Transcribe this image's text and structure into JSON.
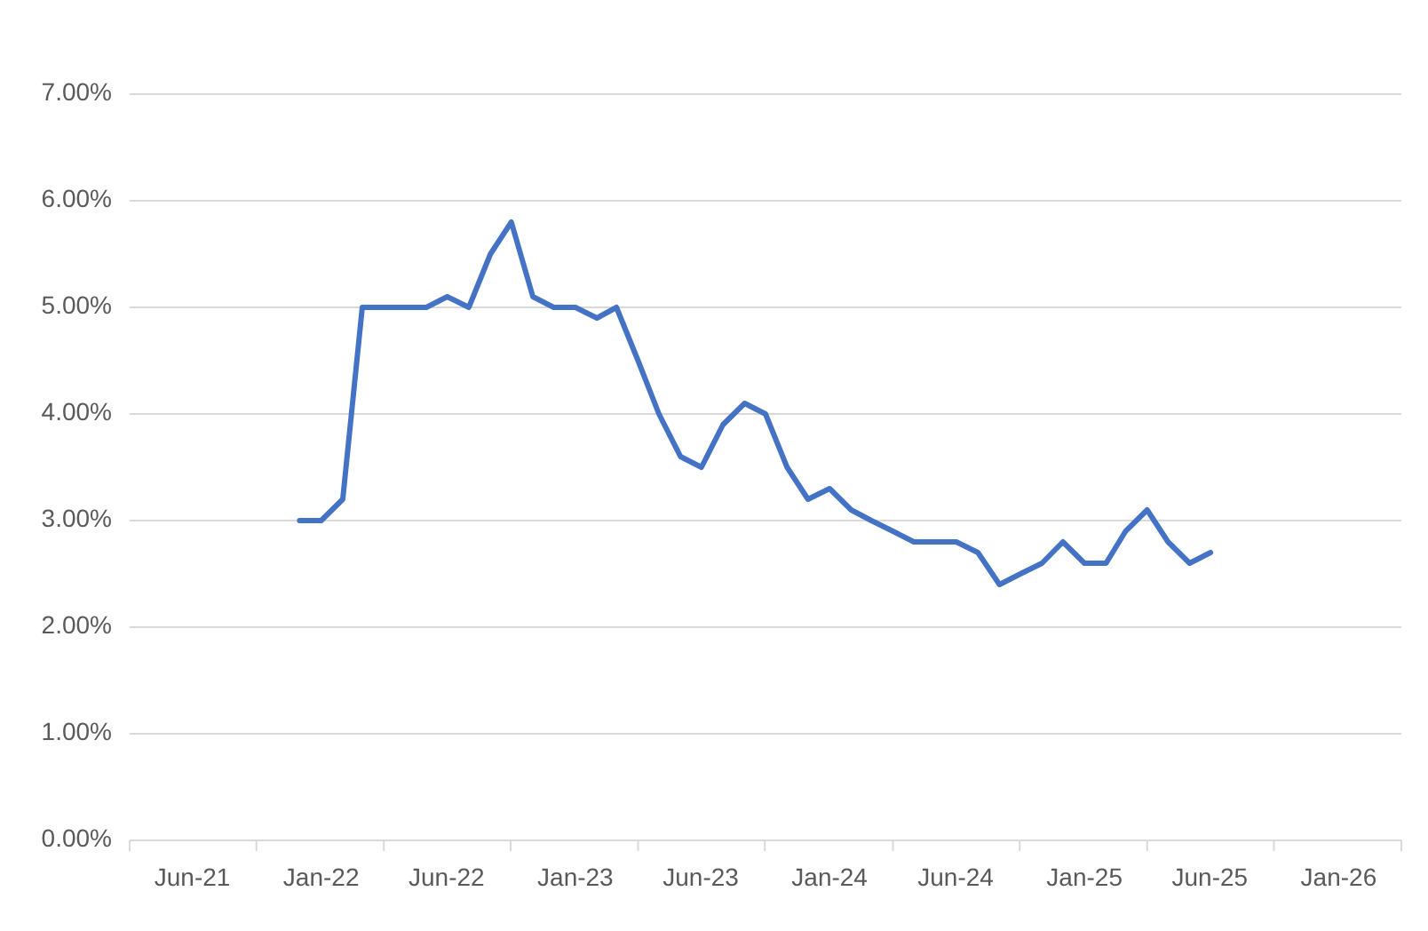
{
  "chart_data": {
    "type": "line",
    "x": [
      "2021-12",
      "2022-01",
      "2022-02",
      "2022-03",
      "2022-04",
      "2022-05",
      "2022-06",
      "2022-07",
      "2022-08",
      "2022-09",
      "2022-10",
      "2022-11",
      "2022-12",
      "2023-01",
      "2023-02",
      "2023-03",
      "2023-04",
      "2023-05",
      "2023-06",
      "2023-07",
      "2023-08",
      "2023-09",
      "2023-10",
      "2023-11",
      "2023-12",
      "2024-01",
      "2024-02",
      "2024-03",
      "2024-04",
      "2024-05",
      "2024-06",
      "2024-07",
      "2024-08",
      "2024-09",
      "2024-10",
      "2024-11",
      "2024-12",
      "2025-01",
      "2025-02",
      "2025-03",
      "2025-04",
      "2025-05",
      "2025-06",
      "2025-07"
    ],
    "values": [
      3.0,
      3.0,
      3.2,
      5.0,
      5.0,
      5.0,
      5.0,
      5.1,
      5.0,
      5.5,
      5.8,
      5.1,
      5.0,
      5.0,
      4.9,
      5.0,
      4.5,
      4.0,
      3.6,
      3.5,
      3.9,
      4.1,
      4.0,
      3.5,
      3.2,
      3.3,
      3.1,
      3.0,
      2.9,
      2.8,
      2.8,
      2.8,
      2.7,
      2.4,
      2.5,
      2.6,
      2.8,
      2.6,
      2.6,
      2.9,
      3.1,
      2.8,
      2.6,
      2.7
    ],
    "color": "#4472c4",
    "xlim": [
      "2021-04-01",
      "2026-04-01"
    ],
    "xticks": [
      {
        "value": "2021-04-01",
        "label": null
      },
      {
        "value": "2021-06-30",
        "label": "Jun-21"
      },
      {
        "value": "2021-09-30",
        "label": null
      },
      {
        "value": "2022-01-01",
        "label": "Jan-22"
      },
      {
        "value": "2022-04-01",
        "label": null
      },
      {
        "value": "2022-06-30",
        "label": "Jun-22"
      },
      {
        "value": "2022-09-30",
        "label": null
      },
      {
        "value": "2023-01-01",
        "label": "Jan-23"
      },
      {
        "value": "2023-04-01",
        "label": null
      },
      {
        "value": "2023-06-30",
        "label": "Jun-23"
      },
      {
        "value": "2023-09-30",
        "label": null
      },
      {
        "value": "2024-01-01",
        "label": "Jan-24"
      },
      {
        "value": "2024-04-01",
        "label": null
      },
      {
        "value": "2024-06-30",
        "label": "Jun-24"
      },
      {
        "value": "2024-09-30",
        "label": null
      },
      {
        "value": "2025-01-01",
        "label": "Jan-25"
      },
      {
        "value": "2025-04-01",
        "label": null
      },
      {
        "value": "2025-06-30",
        "label": "Jun-25"
      },
      {
        "value": "2025-09-30",
        "label": null
      },
      {
        "value": "2026-01-01",
        "label": "Jan-26"
      },
      {
        "value": "2026-04-01",
        "label": null
      }
    ],
    "ylim": [
      0,
      7
    ],
    "yticks": [
      {
        "value": 0,
        "label": "0.00%"
      },
      {
        "value": 1,
        "label": "1.00%"
      },
      {
        "value": 2,
        "label": "2.00%"
      },
      {
        "value": 3,
        "label": "3.00%"
      },
      {
        "value": 4,
        "label": "4.00%"
      },
      {
        "value": 5,
        "label": "5.00%"
      },
      {
        "value": 6,
        "label": "6.00%"
      },
      {
        "value": 7,
        "label": "7.00%"
      }
    ],
    "grid": "y"
  }
}
